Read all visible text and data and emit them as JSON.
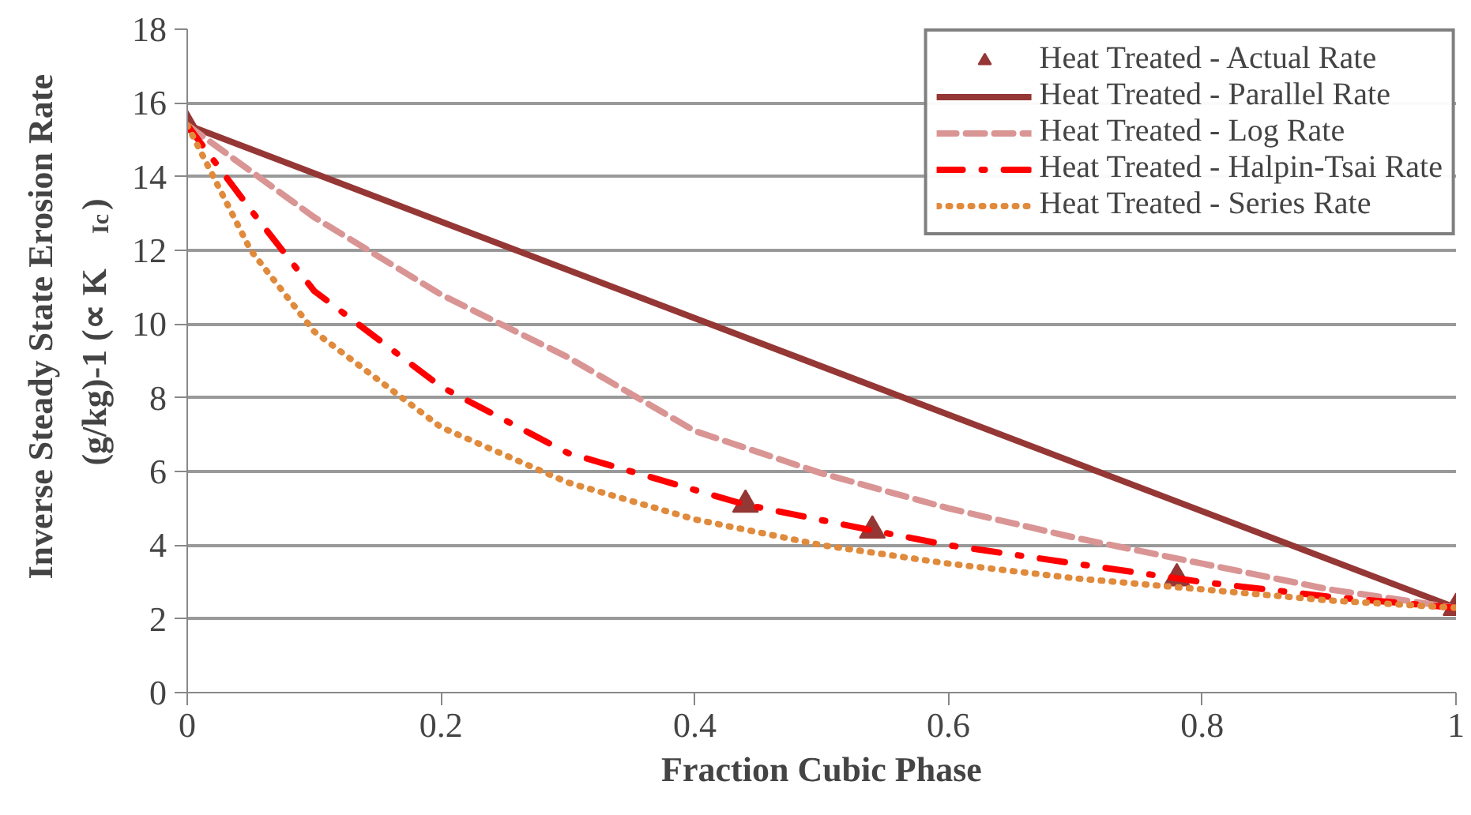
{
  "chart_data": {
    "type": "line",
    "xlabel": "Fraction Cubic Phase",
    "ylabel": "Inverse Steady State  Erosion Rate\n(g/kg)-1     (∝ K$_{Ic}$)",
    "xlim": [
      0,
      1
    ],
    "ylim": [
      0,
      18
    ],
    "xticks": [
      0,
      0.2,
      0.4,
      0.6,
      0.8,
      1
    ],
    "yticks": [
      0,
      2,
      4,
      6,
      8,
      10,
      12,
      14,
      16,
      18
    ],
    "grid": "y",
    "legend": "top right",
    "series": [
      {
        "name": "Heat Treated - Actual Rate",
        "type": "scatter",
        "marker": "triangle",
        "color": "#953735",
        "x": [
          0,
          0.44,
          0.54,
          0.78,
          1
        ],
        "values": [
          15.4,
          5.1,
          4.4,
          3.1,
          2.3
        ]
      },
      {
        "name": "Heat Treated - Parallel Rate",
        "line_style": "solid",
        "color": "#953735",
        "x": [
          0,
          1
        ],
        "values": [
          15.4,
          2.3
        ]
      },
      {
        "name": "Heat Treated - Log Rate",
        "line_style": "dashed",
        "color": "#d99594",
        "x": [
          0,
          0.1,
          0.2,
          0.3,
          0.4,
          0.5,
          0.6,
          0.7,
          0.8,
          0.9,
          1
        ],
        "values": [
          15.4,
          12.9,
          10.8,
          9.1,
          7.1,
          5.95,
          5.0,
          4.2,
          3.5,
          2.8,
          2.3
        ]
      },
      {
        "name": "Heat Treated - Halpin-Tsai Rate",
        "line_style": "dashdot",
        "color": "#ff0000",
        "x": [
          0,
          0.05,
          0.1,
          0.2,
          0.3,
          0.44,
          0.54,
          0.6,
          0.7,
          0.8,
          0.9,
          1
        ],
        "values": [
          15.4,
          13.1,
          10.9,
          8.3,
          6.5,
          5.1,
          4.4,
          4.0,
          3.5,
          3.0,
          2.6,
          2.3
        ]
      },
      {
        "name": "Heat Treated - Series Rate",
        "line_style": "dotted",
        "color": "#e08a3c",
        "x": [
          0,
          0.05,
          0.1,
          0.2,
          0.3,
          0.4,
          0.5,
          0.6,
          0.7,
          0.8,
          0.9,
          1
        ],
        "values": [
          15.4,
          12.0,
          9.8,
          7.2,
          5.7,
          4.7,
          4.0,
          3.5,
          3.1,
          2.8,
          2.5,
          2.3
        ]
      }
    ]
  }
}
